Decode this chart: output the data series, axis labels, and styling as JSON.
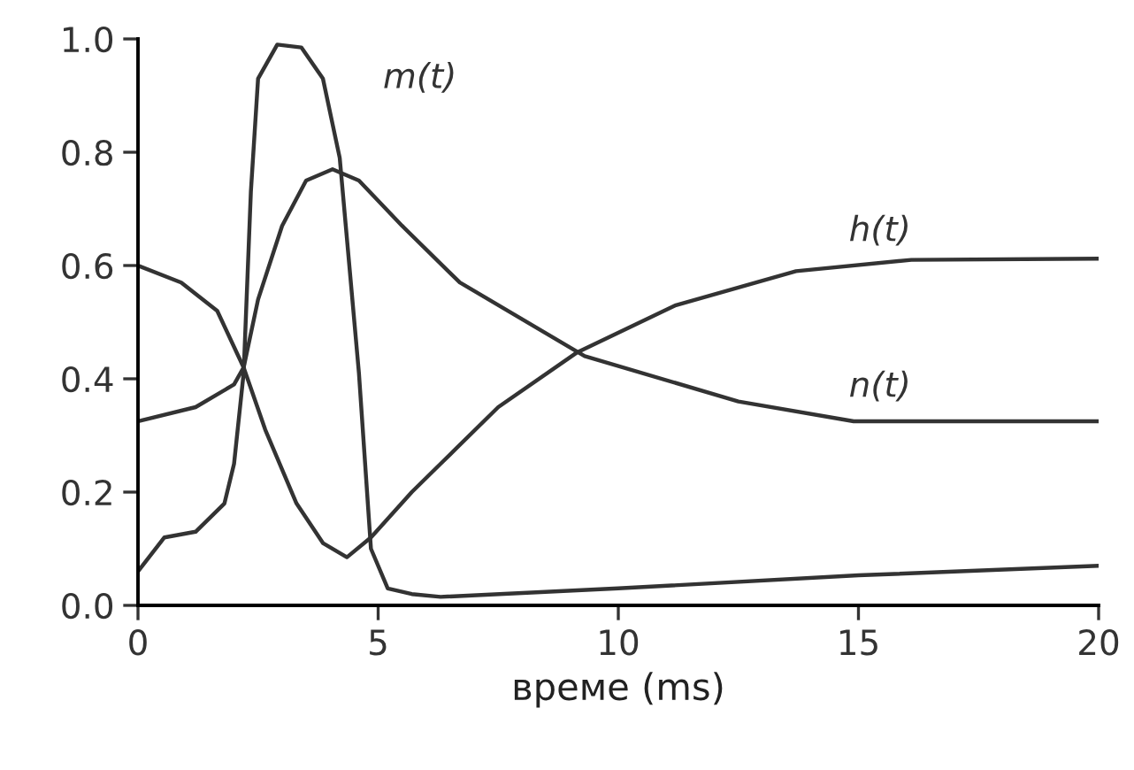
{
  "chart_data": {
    "type": "line",
    "xlabel": "време (ms)",
    "xlim": [
      0,
      20
    ],
    "ylim": [
      0,
      1.0
    ],
    "xticks": [
      0,
      5,
      10,
      15,
      20
    ],
    "yticks": [
      {
        "value": 0,
        "label": "0.0"
      },
      {
        "value": 0.2,
        "label": "0.2"
      },
      {
        "value": 0.4,
        "label": "0.4"
      },
      {
        "value": 0.6,
        "label": "0.6"
      },
      {
        "value": 0.8,
        "label": "0.8"
      },
      {
        "value": 1.0,
        "label": "1.0"
      }
    ],
    "grid": false,
    "legend": false,
    "marker": "none",
    "line_style": "solid",
    "series": [
      {
        "name": "m(t)",
        "color": "#333333",
        "x": [
          0,
          0.55,
          1.2,
          1.8,
          2.0,
          2.2,
          2.35,
          2.5,
          2.9,
          3.4,
          3.85,
          4.2,
          4.6,
          4.85,
          5.2,
          5.7,
          6.3,
          10,
          15,
          20
        ],
        "values": [
          0.06,
          0.12,
          0.13,
          0.18,
          0.25,
          0.41,
          0.73,
          0.93,
          0.99,
          0.985,
          0.93,
          0.79,
          0.41,
          0.1,
          0.03,
          0.02,
          0.015,
          0.03,
          0.053,
          0.07
        ]
      },
      {
        "name": "h(t)",
        "color": "#333333",
        "x": [
          0,
          0.9,
          1.65,
          2.2,
          2.65,
          3.3,
          3.85,
          4.35,
          4.85,
          5.7,
          6.3,
          7.5,
          9.15,
          11.2,
          13.7,
          16.1,
          20
        ],
        "values": [
          0.6,
          0.57,
          0.52,
          0.42,
          0.31,
          0.18,
          0.11,
          0.085,
          0.12,
          0.2,
          0.25,
          0.35,
          0.447,
          0.53,
          0.59,
          0.61,
          0.612
        ]
      },
      {
        "name": "n(t)",
        "color": "#333333",
        "x": [
          0,
          1.2,
          2.0,
          2.2,
          2.5,
          3.0,
          3.5,
          4.05,
          4.6,
          5.5,
          6.7,
          9.3,
          12.5,
          14.9,
          20
        ],
        "values": [
          0.325,
          0.35,
          0.39,
          0.42,
          0.54,
          0.67,
          0.75,
          0.77,
          0.75,
          0.67,
          0.57,
          0.44,
          0.36,
          0.325,
          0.325
        ]
      }
    ]
  }
}
